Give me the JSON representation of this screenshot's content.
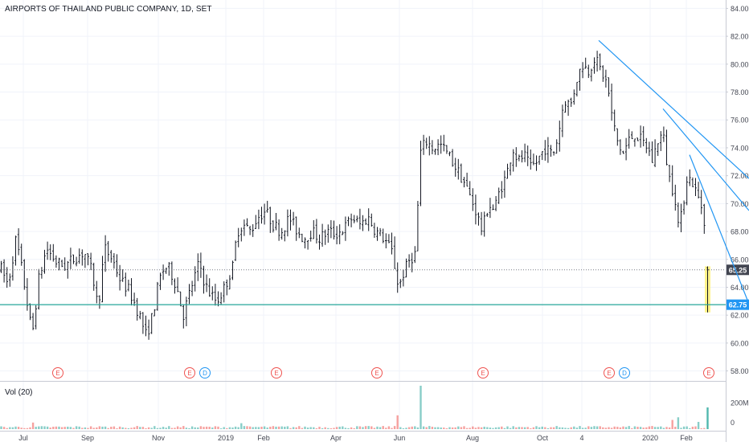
{
  "header": {
    "title": "AIRPORTS OF THAILAND PUBLIC COMPANY, 1D, SET"
  },
  "volume_panel": {
    "label": "Vol (20)",
    "ticks": [
      "200M",
      "0"
    ]
  },
  "colors": {
    "up": "#26a69a",
    "down": "#ef5350",
    "price_bar": "#131722",
    "trendline": "#2196f3",
    "support": "#26a69a",
    "last_price_label": "#434651",
    "support_label": "#2196f3",
    "highlight": "#fff176",
    "event_earnings": "#ef5350",
    "event_dividend": "#2196f3"
  },
  "chart_data": {
    "type": "ohlc",
    "title": "AIRPORTS OF THAILAND PUBLIC COMPANY, 1D, SET",
    "ylim": [
      57.4,
      84.6
    ],
    "yticks": [
      "58.00",
      "60.00",
      "62.00",
      "64.00",
      "66.00",
      "68.00",
      "70.00",
      "72.00",
      "74.00",
      "76.00",
      "78.00",
      "80.00",
      "82.00",
      "84.00"
    ],
    "x_labels": [
      "Jul",
      "Sep",
      "Nov",
      "2019",
      "Feb",
      "Apr",
      "Jun",
      "Aug",
      "Oct",
      "4",
      "2020",
      "Feb"
    ],
    "price_path": [
      [
        0,
        65.5
      ],
      [
        10,
        64.2
      ],
      [
        20,
        67.5
      ],
      [
        28,
        65.0
      ],
      [
        35,
        62.5
      ],
      [
        40,
        60.5
      ],
      [
        48,
        64.5
      ],
      [
        58,
        66.8
      ],
      [
        70,
        65.8
      ],
      [
        80,
        65.5
      ],
      [
        95,
        66.2
      ],
      [
        105,
        66.5
      ],
      [
        115,
        65.0
      ],
      [
        122,
        62.5
      ],
      [
        130,
        66.8
      ],
      [
        140,
        66.0
      ],
      [
        150,
        64.5
      ],
      [
        160,
        63.8
      ],
      [
        168,
        62.8
      ],
      [
        175,
        61.8
      ],
      [
        182,
        60.5
      ],
      [
        190,
        62.0
      ],
      [
        198,
        64.5
      ],
      [
        205,
        65.5
      ],
      [
        212,
        65.2
      ],
      [
        220,
        64.0
      ],
      [
        228,
        62.0
      ],
      [
        238,
        64.0
      ],
      [
        248,
        65.8
      ],
      [
        255,
        64.2
      ],
      [
        262,
        63.5
      ],
      [
        270,
        63.0
      ],
      [
        278,
        63.8
      ],
      [
        285,
        64.8
      ],
      [
        290,
        65.5
      ],
      [
        295,
        68.0
      ],
      [
        302,
        68.5
      ],
      [
        312,
        68.0
      ],
      [
        320,
        69.0
      ],
      [
        330,
        69.5
      ],
      [
        340,
        68.5
      ],
      [
        350,
        68.0
      ],
      [
        360,
        69.0
      ],
      [
        370,
        68.0
      ],
      [
        378,
        67.5
      ],
      [
        388,
        68.0
      ],
      [
        398,
        67.5
      ],
      [
        408,
        68.0
      ],
      [
        418,
        67.8
      ],
      [
        428,
        68.2
      ],
      [
        438,
        69.0
      ],
      [
        448,
        68.5
      ],
      [
        458,
        69.0
      ],
      [
        468,
        68.0
      ],
      [
        478,
        67.5
      ],
      [
        488,
        66.5
      ],
      [
        496,
        64.0
      ],
      [
        502,
        65.0
      ],
      [
        510,
        66.0
      ],
      [
        518,
        66.5
      ],
      [
        522,
        73.5
      ],
      [
        530,
        74.5
      ],
      [
        538,
        74.0
      ],
      [
        548,
        74.2
      ],
      [
        558,
        73.5
      ],
      [
        568,
        72.5
      ],
      [
        578,
        71.5
      ],
      [
        585,
        70.5
      ],
      [
        592,
        69.5
      ],
      [
        600,
        68.0
      ],
      [
        608,
        70.0
      ],
      [
        615,
        69.5
      ],
      [
        622,
        71.0
      ],
      [
        630,
        72.0
      ],
      [
        638,
        74.0
      ],
      [
        645,
        73.0
      ],
      [
        652,
        73.5
      ],
      [
        660,
        72.5
      ],
      [
        668,
        73.0
      ],
      [
        678,
        74.0
      ],
      [
        688,
        73.5
      ],
      [
        695,
        75.0
      ],
      [
        702,
        77.5
      ],
      [
        710,
        77.0
      ],
      [
        718,
        79.0
      ],
      [
        725,
        80.0
      ],
      [
        732,
        79.5
      ],
      [
        740,
        80.5
      ],
      [
        748,
        79.5
      ],
      [
        756,
        78.5
      ],
      [
        762,
        76.0
      ],
      [
        768,
        74.5
      ],
      [
        775,
        73.5
      ],
      [
        782,
        74.5
      ],
      [
        790,
        75.0
      ],
      [
        798,
        74.5
      ],
      [
        806,
        74.0
      ],
      [
        812,
        73.0
      ],
      [
        818,
        74.5
      ],
      [
        825,
        75.0
      ],
      [
        832,
        72.0
      ],
      [
        840,
        70.5
      ],
      [
        845,
        68.0
      ],
      [
        850,
        70.0
      ],
      [
        855,
        72.0
      ],
      [
        862,
        71.5
      ],
      [
        868,
        70.5
      ],
      [
        872,
        70.0
      ],
      [
        876,
        69.0
      ],
      [
        878,
        68.0
      ]
    ],
    "last_bar": {
      "open": 65.4,
      "high": 65.5,
      "low": 62.2,
      "close": 65.25
    },
    "last_price": 65.25,
    "horizontal_line": 62.75,
    "labels": {
      "last_price": "65.25",
      "horizontal_line": "62.75"
    },
    "trendlines": [
      {
        "from": [
          745,
          81.7
        ],
        "to": [
          932,
          71.8
        ]
      },
      {
        "from": [
          825,
          76.8
        ],
        "to": [
          932,
          69.5
        ]
      },
      {
        "from": [
          858,
          73.5
        ],
        "to": [
          932,
          62.8
        ]
      }
    ],
    "events": [
      {
        "x": 72,
        "label": "E",
        "kind": "earnings"
      },
      {
        "x": 236,
        "label": "E",
        "kind": "earnings"
      },
      {
        "x": 255,
        "label": "D",
        "kind": "dividend"
      },
      {
        "x": 344,
        "label": "E",
        "kind": "earnings"
      },
      {
        "x": 469,
        "label": "E",
        "kind": "earnings"
      },
      {
        "x": 601,
        "label": "E",
        "kind": "earnings"
      },
      {
        "x": 758,
        "label": "E",
        "kind": "earnings"
      },
      {
        "x": 777,
        "label": "D",
        "kind": "dividend"
      },
      {
        "x": 882,
        "label": "E",
        "kind": "earnings"
      }
    ],
    "volume": {
      "max": 330,
      "spikes": [
        [
          522,
          330,
          "up"
        ],
        [
          496,
          105,
          "down"
        ],
        [
          880,
          165,
          "up"
        ],
        [
          845,
          90,
          "up"
        ],
        [
          838,
          70,
          "down"
        ],
        [
          868,
          55,
          "up"
        ],
        [
          40,
          50,
          "down"
        ],
        [
          300,
          45,
          "up"
        ]
      ]
    }
  }
}
